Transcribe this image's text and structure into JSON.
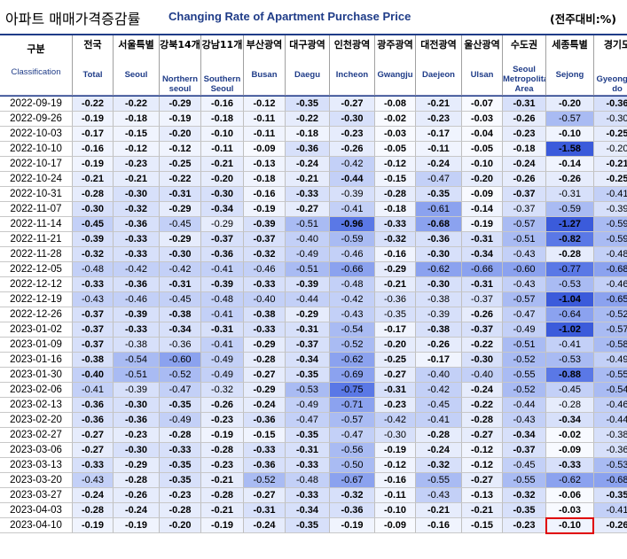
{
  "title": {
    "korean": "아파트 매매가격증감률",
    "english": "Changing Rate of Apartment Purchase Price",
    "unit": "(전주대비:%)"
  },
  "colors": {
    "navy": "#1f3c88",
    "highlight_border": "#e00000",
    "scale_strongest": "#3b5bdb",
    "scale_light": "#dce4fa"
  },
  "chart_data": {
    "type": "table",
    "header": {
      "date_ko": "구분",
      "date_en": "Classification"
    },
    "columns": [
      {
        "ko": "전국",
        "en": "Total"
      },
      {
        "ko": "서울특별",
        "en": "Seoul"
      },
      {
        "ko": "강북14개",
        "en": "Northern seoul"
      },
      {
        "ko": "강남11개",
        "en": "Southern Seoul"
      },
      {
        "ko": "부산광역",
        "en": "Busan"
      },
      {
        "ko": "대구광역",
        "en": "Daegu"
      },
      {
        "ko": "인천광역",
        "en": "Incheon"
      },
      {
        "ko": "광주광역",
        "en": "Gwangju"
      },
      {
        "ko": "대전광역",
        "en": "Daejeon"
      },
      {
        "ko": "울산광역",
        "en": "Ulsan"
      },
      {
        "ko": "수도권",
        "en": "Seoul Metropolitan Area"
      },
      {
        "ko": "세종특별",
        "en": "Sejong"
      },
      {
        "ko": "경기도",
        "en": "Gyeonggi-do"
      }
    ],
    "rows": [
      {
        "date": "2022-09-19",
        "values": [
          "-0.22",
          "-0.22",
          "-0.29",
          "-0.16",
          "-0.12",
          "-0.35",
          "-0.27",
          "-0.08",
          "-0.21",
          "-0.07",
          "-0.31",
          "-0.20",
          "-0.36"
        ]
      },
      {
        "date": "2022-09-26",
        "values": [
          "-0.19",
          "-0.18",
          "-0.19",
          "-0.18",
          "-0.11",
          "-0.22",
          "-0.30",
          "-0.02",
          "-0.23",
          "-0.03",
          "-0.26",
          "-0.57",
          "-0.30"
        ]
      },
      {
        "date": "2022-10-03",
        "values": [
          "-0.17",
          "-0.15",
          "-0.20",
          "-0.10",
          "-0.11",
          "-0.18",
          "-0.23",
          "-0.03",
          "-0.17",
          "-0.04",
          "-0.23",
          "-0.10",
          "-0.25"
        ]
      },
      {
        "date": "2022-10-10",
        "values": [
          "-0.16",
          "-0.12",
          "-0.12",
          "-0.11",
          "-0.09",
          "-0.36",
          "-0.26",
          "-0.05",
          "-0.11",
          "-0.05",
          "-0.18",
          "-1.58",
          "-0.20"
        ]
      },
      {
        "date": "2022-10-17",
        "values": [
          "-0.19",
          "-0.23",
          "-0.25",
          "-0.21",
          "-0.13",
          "-0.24",
          "-0.42",
          "-0.12",
          "-0.24",
          "-0.10",
          "-0.24",
          "-0.14",
          "-0.21"
        ]
      },
      {
        "date": "2022-10-24",
        "values": [
          "-0.21",
          "-0.21",
          "-0.22",
          "-0.20",
          "-0.18",
          "-0.21",
          "-0.44",
          "-0.15",
          "-0.47",
          "-0.20",
          "-0.26",
          "-0.26",
          "-0.25"
        ]
      },
      {
        "date": "2022-10-31",
        "values": [
          "-0.28",
          "-0.30",
          "-0.31",
          "-0.30",
          "-0.16",
          "-0.33",
          "-0.39",
          "-0.28",
          "-0.35",
          "-0.09",
          "-0.37",
          "-0.31",
          "-0.41"
        ]
      },
      {
        "date": "2022-11-07",
        "values": [
          "-0.30",
          "-0.32",
          "-0.29",
          "-0.34",
          "-0.19",
          "-0.27",
          "-0.41",
          "-0.18",
          "-0.61",
          "-0.14",
          "-0.37",
          "-0.59",
          "-0.39"
        ]
      },
      {
        "date": "2022-11-14",
        "values": [
          "-0.45",
          "-0.36",
          "-0.45",
          "-0.29",
          "-0.39",
          "-0.51",
          "-0.96",
          "-0.33",
          "-0.68",
          "-0.19",
          "-0.57",
          "-1.27",
          "-0.59"
        ]
      },
      {
        "date": "2022-11-21",
        "values": [
          "-0.39",
          "-0.33",
          "-0.29",
          "-0.37",
          "-0.37",
          "-0.40",
          "-0.59",
          "-0.32",
          "-0.36",
          "-0.31",
          "-0.51",
          "-0.82",
          "-0.59"
        ]
      },
      {
        "date": "2022-11-28",
        "values": [
          "-0.32",
          "-0.33",
          "-0.30",
          "-0.36",
          "-0.32",
          "-0.49",
          "-0.46",
          "-0.16",
          "-0.30",
          "-0.34",
          "-0.43",
          "-0.28",
          "-0.48"
        ]
      },
      {
        "date": "2022-12-05",
        "values": [
          "-0.48",
          "-0.42",
          "-0.42",
          "-0.41",
          "-0.46",
          "-0.51",
          "-0.66",
          "-0.29",
          "-0.62",
          "-0.66",
          "-0.60",
          "-0.77",
          "-0.68"
        ]
      },
      {
        "date": "2022-12-12",
        "values": [
          "-0.33",
          "-0.36",
          "-0.31",
          "-0.39",
          "-0.33",
          "-0.39",
          "-0.48",
          "-0.21",
          "-0.30",
          "-0.31",
          "-0.43",
          "-0.53",
          "-0.46"
        ]
      },
      {
        "date": "2022-12-19",
        "values": [
          "-0.43",
          "-0.46",
          "-0.45",
          "-0.48",
          "-0.40",
          "-0.44",
          "-0.42",
          "-0.36",
          "-0.38",
          "-0.37",
          "-0.57",
          "-1.04",
          "-0.65"
        ]
      },
      {
        "date": "2022-12-26",
        "values": [
          "-0.37",
          "-0.39",
          "-0.38",
          "-0.41",
          "-0.38",
          "-0.29",
          "-0.43",
          "-0.35",
          "-0.39",
          "-0.26",
          "-0.47",
          "-0.64",
          "-0.52"
        ]
      },
      {
        "date": "2023-01-02",
        "values": [
          "-0.37",
          "-0.33",
          "-0.34",
          "-0.31",
          "-0.33",
          "-0.31",
          "-0.54",
          "-0.17",
          "-0.38",
          "-0.37",
          "-0.49",
          "-1.02",
          "-0.57"
        ]
      },
      {
        "date": "2023-01-09",
        "values": [
          "-0.37",
          "-0.38",
          "-0.36",
          "-0.41",
          "-0.29",
          "-0.37",
          "-0.52",
          "-0.20",
          "-0.26",
          "-0.22",
          "-0.51",
          "-0.41",
          "-0.58"
        ]
      },
      {
        "date": "2023-01-16",
        "values": [
          "-0.38",
          "-0.54",
          "-0.60",
          "-0.49",
          "-0.28",
          "-0.34",
          "-0.62",
          "-0.25",
          "-0.17",
          "-0.30",
          "-0.52",
          "-0.53",
          "-0.49"
        ]
      },
      {
        "date": "2023-01-30",
        "values": [
          "-0.40",
          "-0.51",
          "-0.52",
          "-0.49",
          "-0.27",
          "-0.35",
          "-0.69",
          "-0.27",
          "-0.40",
          "-0.40",
          "-0.55",
          "-0.88",
          "-0.55"
        ]
      },
      {
        "date": "2023-02-06",
        "values": [
          "-0.41",
          "-0.39",
          "-0.47",
          "-0.32",
          "-0.29",
          "-0.53",
          "-0.75",
          "-0.31",
          "-0.42",
          "-0.24",
          "-0.52",
          "-0.45",
          "-0.54"
        ]
      },
      {
        "date": "2023-02-13",
        "values": [
          "-0.36",
          "-0.30",
          "-0.35",
          "-0.26",
          "-0.24",
          "-0.49",
          "-0.71",
          "-0.23",
          "-0.45",
          "-0.22",
          "-0.44",
          "-0.28",
          "-0.46"
        ]
      },
      {
        "date": "2023-02-20",
        "values": [
          "-0.36",
          "-0.36",
          "-0.49",
          "-0.23",
          "-0.36",
          "-0.47",
          "-0.57",
          "-0.42",
          "-0.41",
          "-0.28",
          "-0.43",
          "-0.34",
          "-0.44"
        ]
      },
      {
        "date": "2023-02-27",
        "values": [
          "-0.27",
          "-0.23",
          "-0.28",
          "-0.19",
          "-0.15",
          "-0.35",
          "-0.47",
          "-0.30",
          "-0.28",
          "-0.27",
          "-0.34",
          "-0.02",
          "-0.38"
        ]
      },
      {
        "date": "2023-03-06",
        "values": [
          "-0.27",
          "-0.30",
          "-0.33",
          "-0.28",
          "-0.33",
          "-0.31",
          "-0.56",
          "-0.19",
          "-0.24",
          "-0.12",
          "-0.37",
          "-0.09",
          "-0.36"
        ]
      },
      {
        "date": "2023-03-13",
        "values": [
          "-0.33",
          "-0.29",
          "-0.35",
          "-0.23",
          "-0.36",
          "-0.33",
          "-0.50",
          "-0.12",
          "-0.32",
          "-0.12",
          "-0.45",
          "-0.33",
          "-0.53"
        ]
      },
      {
        "date": "2023-03-20",
        "values": [
          "-0.43",
          "-0.28",
          "-0.35",
          "-0.21",
          "-0.52",
          "-0.48",
          "-0.67",
          "-0.16",
          "-0.55",
          "-0.27",
          "-0.55",
          "-0.62",
          "-0.68"
        ]
      },
      {
        "date": "2023-03-27",
        "values": [
          "-0.24",
          "-0.26",
          "-0.23",
          "-0.28",
          "-0.27",
          "-0.33",
          "-0.32",
          "-0.11",
          "-0.43",
          "-0.13",
          "-0.32",
          "-0.06",
          "-0.35"
        ]
      },
      {
        "date": "2023-04-03",
        "values": [
          "-0.28",
          "-0.24",
          "-0.28",
          "-0.21",
          "-0.31",
          "-0.34",
          "-0.36",
          "-0.10",
          "-0.21",
          "-0.21",
          "-0.35",
          "-0.03",
          "-0.41"
        ]
      },
      {
        "date": "2023-04-10",
        "values": [
          "-0.19",
          "-0.19",
          "-0.20",
          "-0.19",
          "-0.24",
          "-0.35",
          "-0.19",
          "-0.09",
          "-0.16",
          "-0.15",
          "-0.23",
          "-0.10",
          "-0.26"
        ]
      }
    ],
    "bold_cells": {
      "0": [
        0,
        1,
        2,
        3,
        4,
        5,
        6,
        7,
        8,
        9,
        10,
        11,
        12
      ],
      "1": [
        0,
        1,
        2,
        3,
        4,
        5,
        6,
        7,
        8,
        9,
        10
      ],
      "2": [
        0,
        1,
        2,
        3,
        4,
        5,
        6,
        7,
        8,
        9,
        10,
        11,
        12
      ],
      "3": [
        0,
        1,
        2,
        3,
        4,
        5,
        6,
        7,
        8,
        9,
        10,
        11
      ],
      "4": [
        0,
        1,
        2,
        3,
        4,
        5,
        7,
        8,
        9,
        10,
        11,
        12
      ],
      "5": [
        0,
        1,
        2,
        3,
        4,
        5,
        6,
        7,
        9,
        10,
        11,
        12
      ],
      "6": [
        0,
        1,
        2,
        3,
        4,
        5,
        7,
        8,
        9,
        10
      ],
      "7": [
        0,
        1,
        2,
        3,
        4,
        5,
        7,
        9
      ],
      "8": [
        0,
        1,
        4,
        6,
        7,
        8,
        9,
        11
      ],
      "9": [
        0,
        1,
        2,
        3,
        4,
        7,
        8,
        9,
        11
      ],
      "10": [
        0,
        1,
        2,
        3,
        4,
        7,
        8,
        9,
        11
      ],
      "11": [
        7
      ],
      "12": [
        0,
        1,
        2,
        3,
        4,
        5,
        7,
        8,
        9
      ],
      "13": [
        11
      ],
      "14": [
        0,
        1,
        2,
        4,
        5,
        9
      ],
      "15": [
        0,
        1,
        2,
        3,
        4,
        5,
        7,
        8,
        9,
        11
      ],
      "16": [
        0,
        4,
        5,
        7,
        8,
        9
      ],
      "17": [
        0,
        4,
        5,
        7,
        8,
        9
      ],
      "18": [
        0,
        4,
        5,
        7,
        11
      ],
      "19": [
        4,
        7,
        9
      ],
      "20": [
        0,
        1,
        2,
        3,
        4,
        7,
        9
      ],
      "21": [
        0,
        1,
        3,
        4,
        9,
        11
      ],
      "22": [
        0,
        1,
        2,
        3,
        4,
        5,
        8,
        9,
        10,
        11
      ],
      "23": [
        0,
        1,
        2,
        3,
        4,
        5,
        7,
        8,
        9,
        10,
        11
      ],
      "24": [
        0,
        1,
        2,
        3,
        4,
        5,
        7,
        8,
        9,
        11
      ],
      "25": [
        1,
        2,
        3,
        7,
        9
      ],
      "26": [
        0,
        1,
        2,
        3,
        4,
        5,
        6,
        7,
        9,
        10,
        11,
        12
      ],
      "27": [
        0,
        1,
        2,
        3,
        4,
        5,
        6,
        7,
        8,
        9,
        10,
        11
      ],
      "28": [
        0,
        1,
        2,
        3,
        4,
        5,
        6,
        7,
        8,
        9,
        10,
        11,
        12
      ]
    },
    "highlighted_cell": {
      "row": 28,
      "col": 11
    }
  }
}
